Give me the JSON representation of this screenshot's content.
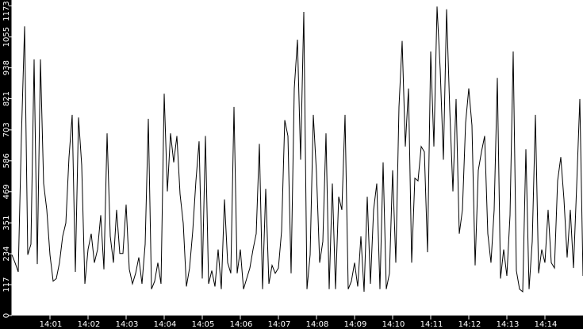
{
  "chart_data": {
    "type": "line",
    "title": "",
    "xlabel": "",
    "ylabel": "",
    "ylim": [
      0,
      1195
    ],
    "xlim": [
      "14:00:00",
      "14:15:00"
    ],
    "grid": false,
    "colors": {
      "background": "#000000",
      "plot_area": "#ffffff",
      "line": "#000000",
      "text": "#ffffff"
    },
    "y_ticks": [
      "0",
      "117",
      "234",
      "351",
      "469",
      "586",
      "703",
      "821",
      "938",
      "1055",
      "1173"
    ],
    "x_ticks": [
      "14:01",
      "14:02",
      "14:03",
      "14:04",
      "14:05",
      "14:06",
      "14:07",
      "14:08",
      "14:09",
      "14:10",
      "14:11",
      "14:12",
      "14:13",
      "14:14"
    ],
    "x": [
      "14:00:00",
      "14:00:05",
      "14:00:10",
      "14:00:15",
      "14:00:20",
      "14:00:25",
      "14:00:30",
      "14:00:35",
      "14:00:40",
      "14:00:45",
      "14:00:50",
      "14:00:55",
      "14:01:00",
      "14:01:05",
      "14:01:10",
      "14:01:15",
      "14:01:20",
      "14:01:25",
      "14:01:30",
      "14:01:35",
      "14:01:40",
      "14:01:45",
      "14:01:50",
      "14:01:55",
      "14:02:00",
      "14:02:05",
      "14:02:10",
      "14:02:15",
      "14:02:20",
      "14:02:25",
      "14:02:30",
      "14:02:35",
      "14:02:40",
      "14:02:45",
      "14:02:50",
      "14:02:55",
      "14:03:00",
      "14:03:05",
      "14:03:10",
      "14:03:15",
      "14:03:20",
      "14:03:25",
      "14:03:30",
      "14:03:35",
      "14:03:40",
      "14:03:45",
      "14:03:50",
      "14:03:55",
      "14:04:00",
      "14:04:05",
      "14:04:10",
      "14:04:15",
      "14:04:20",
      "14:04:25",
      "14:04:30",
      "14:04:35",
      "14:04:40",
      "14:04:45",
      "14:04:50",
      "14:04:55",
      "14:05:00",
      "14:05:05",
      "14:05:10",
      "14:05:15",
      "14:05:20",
      "14:05:25",
      "14:05:30",
      "14:05:35",
      "14:05:40",
      "14:05:45",
      "14:05:50",
      "14:05:55",
      "14:06:00",
      "14:06:05",
      "14:06:10",
      "14:06:15",
      "14:06:20",
      "14:06:25",
      "14:06:30",
      "14:06:35",
      "14:06:40",
      "14:06:45",
      "14:06:50",
      "14:06:55",
      "14:07:00",
      "14:07:05",
      "14:07:10",
      "14:07:15",
      "14:07:20",
      "14:07:25",
      "14:07:30",
      "14:07:35",
      "14:07:40",
      "14:07:45",
      "14:07:50",
      "14:07:55",
      "14:08:00",
      "14:08:05",
      "14:08:10",
      "14:08:15",
      "14:08:20",
      "14:08:25",
      "14:08:30",
      "14:08:35",
      "14:08:40",
      "14:08:45",
      "14:08:50",
      "14:08:55",
      "14:09:00",
      "14:09:05",
      "14:09:10",
      "14:09:15",
      "14:09:20",
      "14:09:25",
      "14:09:30",
      "14:09:35",
      "14:09:40",
      "14:09:45",
      "14:09:50",
      "14:09:55",
      "14:10:00",
      "14:10:05",
      "14:10:10",
      "14:10:15",
      "14:10:20",
      "14:10:25",
      "14:10:30",
      "14:10:35",
      "14:10:40",
      "14:10:45",
      "14:10:50",
      "14:10:55",
      "14:11:00",
      "14:11:05",
      "14:11:10",
      "14:11:15",
      "14:11:20",
      "14:11:25",
      "14:11:30",
      "14:11:35",
      "14:11:40",
      "14:11:45",
      "14:11:50",
      "14:11:55",
      "14:12:00",
      "14:12:05",
      "14:12:10",
      "14:12:15",
      "14:12:20",
      "14:12:25",
      "14:12:30",
      "14:12:35",
      "14:12:40",
      "14:12:45",
      "14:12:50",
      "14:12:55",
      "14:13:00",
      "14:13:05",
      "14:13:10",
      "14:13:15",
      "14:13:20",
      "14:13:25",
      "14:13:30",
      "14:13:35",
      "14:13:40",
      "14:13:45",
      "14:13:50",
      "14:13:55",
      "14:14:00",
      "14:14:05",
      "14:14:10",
      "14:14:15",
      "14:14:20",
      "14:14:25",
      "14:14:30",
      "14:14:35",
      "14:14:40",
      "14:14:45",
      "14:14:50",
      "14:14:55",
      "14:15:00"
    ],
    "series": [
      {
        "values": [
          230,
          200,
          165,
          680,
          1095,
          230,
          270,
          970,
          195,
          970,
          500,
          400,
          230,
          130,
          140,
          200,
          300,
          350,
          600,
          760,
          165,
          750,
          570,
          120,
          250,
          310,
          200,
          250,
          380,
          175,
          690,
          300,
          200,
          400,
          235,
          235,
          420,
          175,
          120,
          160,
          220,
          120,
          270,
          745,
          100,
          130,
          200,
          120,
          840,
          470,
          690,
          580,
          680,
          460,
          350,
          110,
          180,
          320,
          510,
          660,
          140,
          680,
          120,
          170,
          110,
          250,
          100,
          440,
          200,
          160,
          790,
          160,
          250,
          100,
          140,
          180,
          250,
          310,
          650,
          100,
          480,
          120,
          190,
          160,
          180,
          320,
          740,
          680,
          160,
          860,
          1045,
          590,
          1150,
          100,
          230,
          760,
          540,
          200,
          280,
          690,
          100,
          500,
          100,
          450,
          400,
          760,
          100,
          130,
          200,
          110,
          300,
          90,
          450,
          120,
          400,
          500,
          100,
          580,
          100,
          160,
          550,
          200,
          790,
          1040,
          640,
          860,
          200,
          520,
          510,
          640,
          620,
          240,
          1000,
          640,
          1170,
          930,
          590,
          1160,
          780,
          470,
          820,
          310,
          400,
          730,
          860,
          720,
          190,
          550,
          620,
          680,
          310,
          200,
          400,
          900,
          140,
          250,
          150,
          380,
          1000,
          170,
          100,
          90,
          630,
          100,
          280,
          760,
          160,
          250,
          200,
          400,
          200,
          180,
          510,
          600,
          440,
          220,
          400,
          180,
          490,
          820,
          150
        ]
      }
    ]
  }
}
